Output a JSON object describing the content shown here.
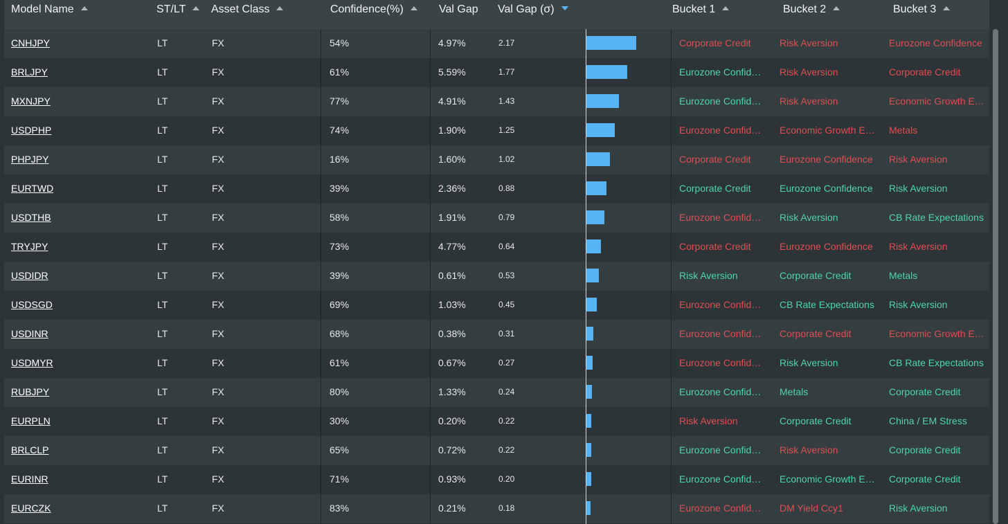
{
  "columns": {
    "model_name": "Model Name",
    "st_lt": "ST/LT",
    "asset_class": "Asset Class",
    "confidence": "Confidence(%)",
    "val_gap": "Val Gap",
    "val_gap_sigma": "Val Gap (σ)",
    "bucket1": "Bucket 1",
    "bucket2": "Bucket 2",
    "bucket3": "Bucket 3"
  },
  "colors": {
    "positive": "#4fd6a6",
    "negative": "#e04e52",
    "bar": "#56b4f5"
  },
  "rows": [
    {
      "model": "CNHJPY",
      "stlt": "LT",
      "asset": "FX",
      "conf": "54%",
      "gap": "4.97%",
      "sigma": "2.17",
      "b1": "Corporate Credit",
      "b1c": "red",
      "b2": "Risk Aversion",
      "b2c": "red",
      "b3": "Eurozone Confidence",
      "b3c": "red"
    },
    {
      "model": "BRLJPY",
      "stlt": "LT",
      "asset": "FX",
      "conf": "61%",
      "gap": "5.59%",
      "sigma": "1.77",
      "b1": "Eurozone Confidence",
      "b1c": "green",
      "b2": "Risk Aversion",
      "b2c": "red",
      "b3": "Corporate Credit",
      "b3c": "red"
    },
    {
      "model": "MXNJPY",
      "stlt": "LT",
      "asset": "FX",
      "conf": "77%",
      "gap": "4.91%",
      "sigma": "1.43",
      "b1": "Eurozone Confidence",
      "b1c": "green",
      "b2": "Risk Aversion",
      "b2c": "red",
      "b3": "Economic Growth Expectations",
      "b3c": "red"
    },
    {
      "model": "USDPHP",
      "stlt": "LT",
      "asset": "FX",
      "conf": "74%",
      "gap": "1.90%",
      "sigma": "1.25",
      "b1": "Eurozone Confidence",
      "b1c": "red",
      "b2": "Economic Growth Expectations",
      "b2c": "red",
      "b3": "Metals",
      "b3c": "red"
    },
    {
      "model": "PHPJPY",
      "stlt": "LT",
      "asset": "FX",
      "conf": "16%",
      "gap": "1.60%",
      "sigma": "1.02",
      "b1": "Corporate Credit",
      "b1c": "red",
      "b2": "Eurozone Confidence",
      "b2c": "red",
      "b3": "Risk Aversion",
      "b3c": "red"
    },
    {
      "model": "EURTWD",
      "stlt": "LT",
      "asset": "FX",
      "conf": "39%",
      "gap": "2.36%",
      "sigma": "0.88",
      "b1": "Corporate Credit",
      "b1c": "green",
      "b2": "Eurozone Confidence",
      "b2c": "green",
      "b3": "Risk Aversion",
      "b3c": "green"
    },
    {
      "model": "USDTHB",
      "stlt": "LT",
      "asset": "FX",
      "conf": "58%",
      "gap": "1.91%",
      "sigma": "0.79",
      "b1": "Eurozone Confidence",
      "b1c": "red",
      "b2": "Risk Aversion",
      "b2c": "green",
      "b3": "CB Rate Expectations",
      "b3c": "green"
    },
    {
      "model": "TRYJPY",
      "stlt": "LT",
      "asset": "FX",
      "conf": "73%",
      "gap": "4.77%",
      "sigma": "0.64",
      "b1": "Corporate Credit",
      "b1c": "red",
      "b2": "Eurozone Confidence",
      "b2c": "red",
      "b3": "Risk Aversion",
      "b3c": "red"
    },
    {
      "model": "USDIDR",
      "stlt": "LT",
      "asset": "FX",
      "conf": "39%",
      "gap": "0.61%",
      "sigma": "0.53",
      "b1": "Risk Aversion",
      "b1c": "green",
      "b2": "Corporate Credit",
      "b2c": "green",
      "b3": "Metals",
      "b3c": "green"
    },
    {
      "model": "USDSGD",
      "stlt": "LT",
      "asset": "FX",
      "conf": "69%",
      "gap": "1.03%",
      "sigma": "0.45",
      "b1": "Eurozone Confidence",
      "b1c": "red",
      "b2": "CB Rate Expectations",
      "b2c": "green",
      "b3": "Risk Aversion",
      "b3c": "green"
    },
    {
      "model": "USDINR",
      "stlt": "LT",
      "asset": "FX",
      "conf": "68%",
      "gap": "0.38%",
      "sigma": "0.31",
      "b1": "Eurozone Confidence",
      "b1c": "red",
      "b2": "Corporate Credit",
      "b2c": "red",
      "b3": "Economic Growth Expectations",
      "b3c": "red"
    },
    {
      "model": "USDMYR",
      "stlt": "LT",
      "asset": "FX",
      "conf": "61%",
      "gap": "0.67%",
      "sigma": "0.27",
      "b1": "Eurozone Confidence",
      "b1c": "red",
      "b2": "Risk Aversion",
      "b2c": "green",
      "b3": "CB Rate Expectations",
      "b3c": "green"
    },
    {
      "model": "RUBJPY",
      "stlt": "LT",
      "asset": "FX",
      "conf": "80%",
      "gap": "1.33%",
      "sigma": "0.24",
      "b1": "Eurozone Confidence",
      "b1c": "green",
      "b2": "Metals",
      "b2c": "green",
      "b3": "Corporate Credit",
      "b3c": "green"
    },
    {
      "model": "EURPLN",
      "stlt": "LT",
      "asset": "FX",
      "conf": "30%",
      "gap": "0.20%",
      "sigma": "0.22",
      "b1": "Risk Aversion",
      "b1c": "red",
      "b2": "Corporate Credit",
      "b2c": "green",
      "b3": "China / EM Stress",
      "b3c": "green"
    },
    {
      "model": "BRLCLP",
      "stlt": "LT",
      "asset": "FX",
      "conf": "65%",
      "gap": "0.72%",
      "sigma": "0.22",
      "b1": "Eurozone Confidence",
      "b1c": "green",
      "b2": "Risk Aversion",
      "b2c": "red",
      "b3": "Corporate Credit",
      "b3c": "green"
    },
    {
      "model": "EURINR",
      "stlt": "LT",
      "asset": "FX",
      "conf": "71%",
      "gap": "0.93%",
      "sigma": "0.20",
      "b1": "Eurozone Confidence",
      "b1c": "green",
      "b2": "Economic Growth Expectations",
      "b2c": "green",
      "b3": "Corporate Credit",
      "b3c": "green"
    },
    {
      "model": "EURCZK",
      "stlt": "LT",
      "asset": "FX",
      "conf": "83%",
      "gap": "0.21%",
      "sigma": "0.18",
      "b1": "Eurozone Confidence",
      "b1c": "red",
      "b2": "DM Yield Ccy1",
      "b2c": "red",
      "b3": "Risk Aversion",
      "b3c": "green"
    }
  ]
}
